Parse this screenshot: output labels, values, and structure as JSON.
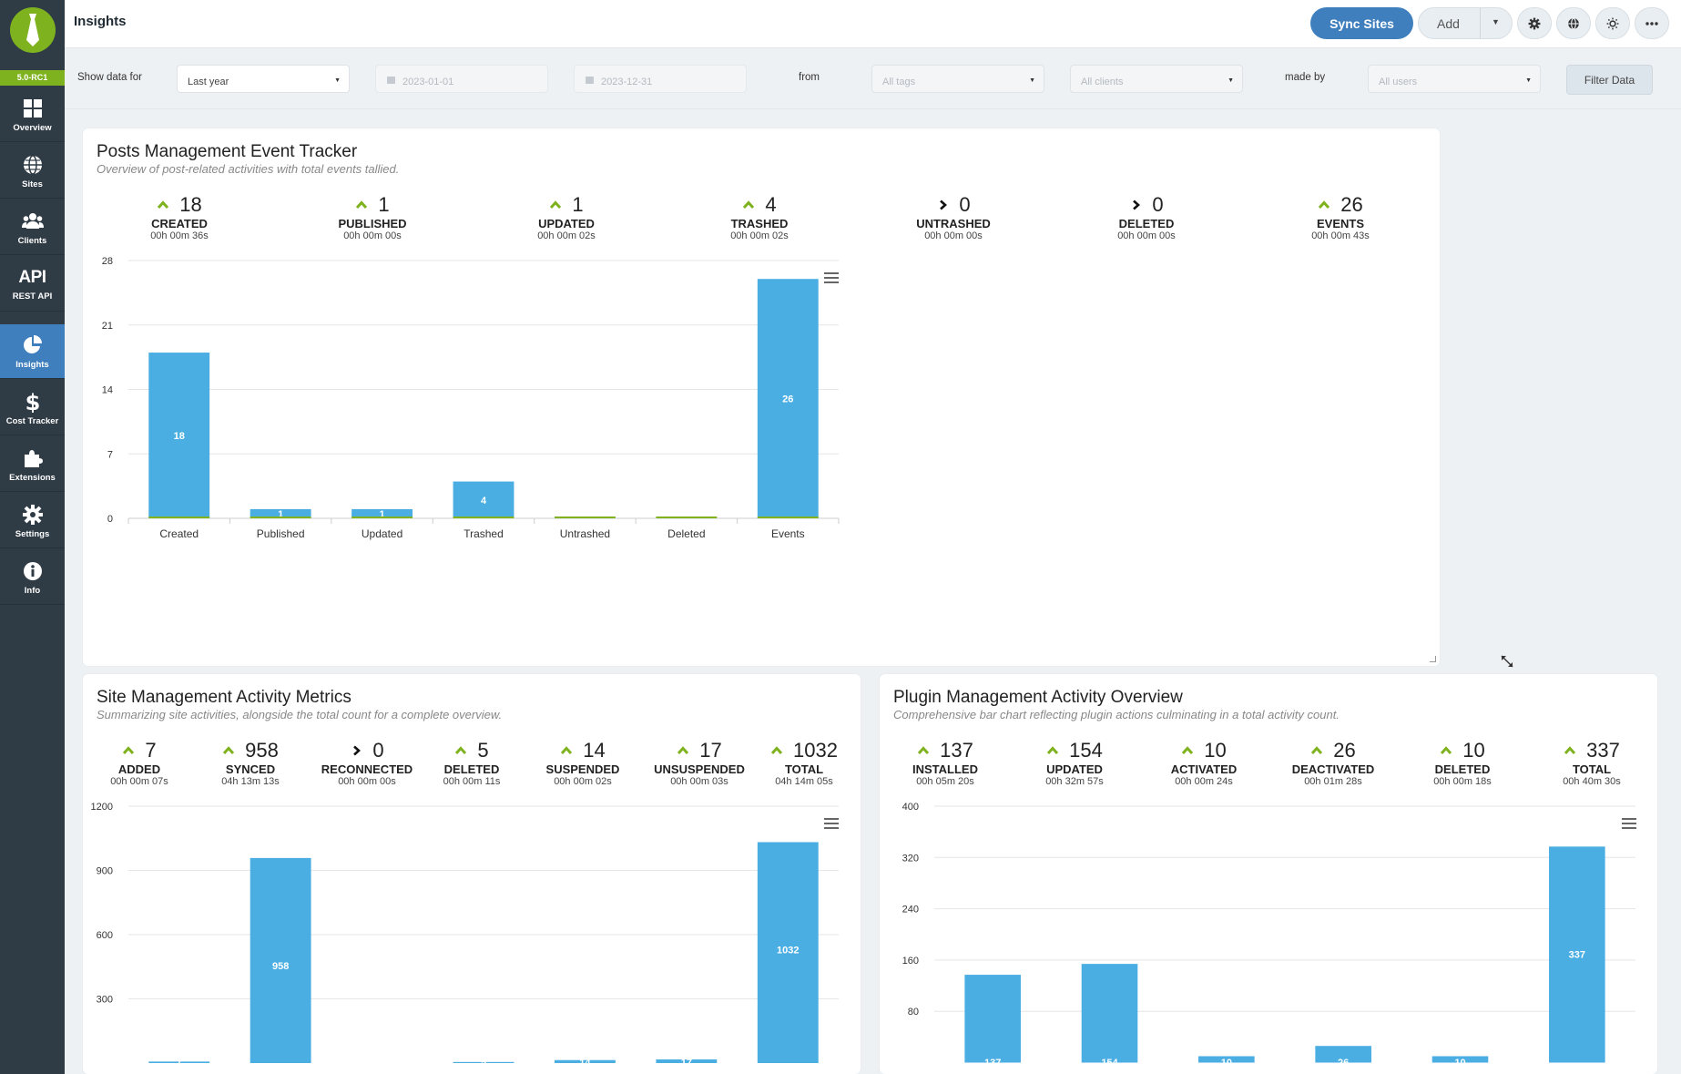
{
  "app": {
    "version": "5.0-RC1",
    "page_title": "Insights"
  },
  "sidebar": {
    "items": [
      {
        "label": "Overview",
        "icon": "grid-icon"
      },
      {
        "label": "Sites",
        "icon": "globe-icon"
      },
      {
        "label": "Clients",
        "icon": "users-icon"
      },
      {
        "label": "REST API",
        "icon": "api-icon",
        "text_icon": "API"
      },
      {
        "label": "Insights",
        "icon": "pie-chart-icon",
        "active": true
      },
      {
        "label": "Cost Tracker",
        "icon": "dollar-icon"
      },
      {
        "label": "Extensions",
        "icon": "puzzle-icon"
      },
      {
        "label": "Settings",
        "icon": "gear-icon"
      },
      {
        "label": "Info",
        "icon": "info-icon"
      }
    ]
  },
  "toolbar": {
    "sync_label": "Sync Sites",
    "add_label": "Add",
    "icons": [
      "gear-icon",
      "globe-icon",
      "sun-icon",
      "more-icon"
    ]
  },
  "filters": {
    "show_label": "Show data for",
    "period": "Last year",
    "date_from": "2023-01-01",
    "date_to": "2023-12-31",
    "from_label": "from",
    "tags": "All tags",
    "clients": "All clients",
    "made_by_label": "made by",
    "users": "All users",
    "filter_button": "Filter Data"
  },
  "colors": {
    "accent": "#3f7fbe",
    "brand_green": "#7fb21f",
    "bar": "#4aaee3",
    "sidebar_bg": "#2f3b45"
  },
  "panels": [
    {
      "title": "Posts Management Event Tracker",
      "subtitle": "Overview of post-related activities with total events tallied.",
      "stats": [
        {
          "value": "18",
          "label": "CREATED",
          "time": "00h 00m 36s",
          "trend": "up"
        },
        {
          "value": "1",
          "label": "PUBLISHED",
          "time": "00h 00m 00s",
          "trend": "up"
        },
        {
          "value": "1",
          "label": "UPDATED",
          "time": "00h 00m 02s",
          "trend": "up"
        },
        {
          "value": "4",
          "label": "TRASHED",
          "time": "00h 00m 02s",
          "trend": "up"
        },
        {
          "value": "0",
          "label": "UNTRASHED",
          "time": "00h 00m 00s",
          "trend": "neutral"
        },
        {
          "value": "0",
          "label": "DELETED",
          "time": "00h 00m 00s",
          "trend": "neutral"
        },
        {
          "value": "26",
          "label": "EVENTS",
          "time": "00h 00m 43s",
          "trend": "up"
        }
      ]
    },
    {
      "title": "Site Management Activity Metrics",
      "subtitle": "Summarizing site activities, alongside the total count for a complete overview.",
      "stats": [
        {
          "value": "7",
          "label": "ADDED",
          "time": "00h 00m 07s",
          "trend": "up"
        },
        {
          "value": "958",
          "label": "SYNCED",
          "time": "04h 13m 13s",
          "trend": "up"
        },
        {
          "value": "0",
          "label": "RECONNECTED",
          "time": "00h 00m 00s",
          "trend": "neutral"
        },
        {
          "value": "5",
          "label": "DELETED",
          "time": "00h 00m 11s",
          "trend": "up"
        },
        {
          "value": "14",
          "label": "SUSPENDED",
          "time": "00h 00m 02s",
          "trend": "up"
        },
        {
          "value": "17",
          "label": "UNSUSPENDED",
          "time": "00h 00m 03s",
          "trend": "up"
        },
        {
          "value": "1032",
          "label": "TOTAL",
          "time": "04h 14m 05s",
          "trend": "up"
        }
      ]
    },
    {
      "title": "Plugin Management Activity Overview",
      "subtitle": "Comprehensive bar chart reflecting plugin actions culminating in a total activity count.",
      "stats": [
        {
          "value": "137",
          "label": "INSTALLED",
          "time": "00h 05m 20s",
          "trend": "up"
        },
        {
          "value": "154",
          "label": "UPDATED",
          "time": "00h 32m 57s",
          "trend": "up"
        },
        {
          "value": "10",
          "label": "ACTIVATED",
          "time": "00h 00m 24s",
          "trend": "up"
        },
        {
          "value": "26",
          "label": "DEACTIVATED",
          "time": "00h 01m 28s",
          "trend": "up"
        },
        {
          "value": "10",
          "label": "DELETED",
          "time": "00h 00m 18s",
          "trend": "up"
        },
        {
          "value": "337",
          "label": "TOTAL",
          "time": "00h 40m 30s",
          "trend": "up"
        }
      ]
    }
  ],
  "chart_data": [
    {
      "type": "bar",
      "categories": [
        "Created",
        "Published",
        "Updated",
        "Trashed",
        "Untrashed",
        "Deleted",
        "Events"
      ],
      "values": [
        18,
        1,
        1,
        4,
        0,
        0,
        26
      ],
      "yticks": [
        0,
        7,
        14,
        21,
        28
      ],
      "ylim": [
        0,
        28
      ],
      "show_category_labels": true,
      "grid": true
    },
    {
      "type": "bar",
      "categories": [
        "Added",
        "Synced",
        "Reconnected",
        "Deleted",
        "Suspended",
        "Unsuspended",
        "Total"
      ],
      "values": [
        7,
        958,
        0,
        5,
        14,
        17,
        1032
      ],
      "yticks": [
        300,
        600,
        900,
        1200
      ],
      "ylim": [
        0,
        1200
      ],
      "show_category_labels": false,
      "grid": true
    },
    {
      "type": "bar",
      "categories": [
        "Installed",
        "Updated",
        "Activated",
        "Deactivated",
        "Deleted",
        "Total"
      ],
      "values": [
        137,
        154,
        10,
        26,
        10,
        337
      ],
      "yticks": [
        80,
        160,
        240,
        320,
        400
      ],
      "ylim": [
        0,
        400
      ],
      "show_category_labels": false,
      "grid": true
    }
  ]
}
